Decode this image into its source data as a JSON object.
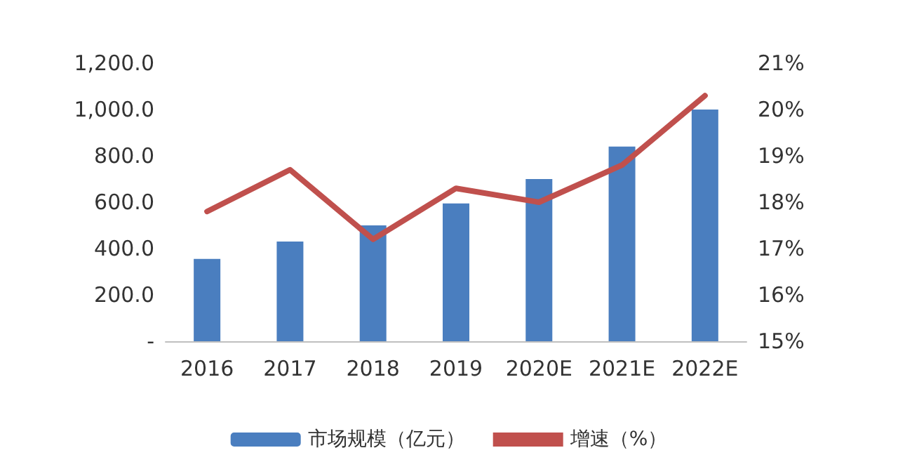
{
  "chart_data": {
    "type": "bar",
    "categories": [
      "2016",
      "2017",
      "2018",
      "2019",
      "2020E",
      "2021E",
      "2022E"
    ],
    "series": [
      {
        "name": "市场规模（亿元）",
        "color": "#4a7ebf",
        "values": [
          355,
          430,
          500,
          595,
          700,
          840,
          1000
        ]
      },
      {
        "name": "增速（%）",
        "type": "line",
        "axis": "y2",
        "color": "#c0504d",
        "values": [
          17.8,
          18.7,
          17.2,
          18.3,
          18.0,
          18.8,
          20.3
        ]
      }
    ],
    "ylim": [
      0,
      1200
    ],
    "yticks": [
      {
        "value": 0,
        "label": "-"
      },
      {
        "value": 200,
        "label": "200.0"
      },
      {
        "value": 400,
        "label": "400.0"
      },
      {
        "value": 600,
        "label": "600.0"
      },
      {
        "value": 800,
        "label": "800.0"
      },
      {
        "value": 1000,
        "label": "1,000.0"
      },
      {
        "value": 1200,
        "label": "1,200.0"
      }
    ],
    "y2lim": [
      15,
      21
    ],
    "y2ticks": [
      {
        "value": 15,
        "label": "15%"
      },
      {
        "value": 16,
        "label": "16%"
      },
      {
        "value": 17,
        "label": "17%"
      },
      {
        "value": 18,
        "label": "18%"
      },
      {
        "value": 19,
        "label": "19%"
      },
      {
        "value": 20,
        "label": "20%"
      },
      {
        "value": 21,
        "label": "21%"
      }
    ],
    "grid": false,
    "legend": "bottom",
    "marker": "none",
    "line_style": "solid"
  }
}
